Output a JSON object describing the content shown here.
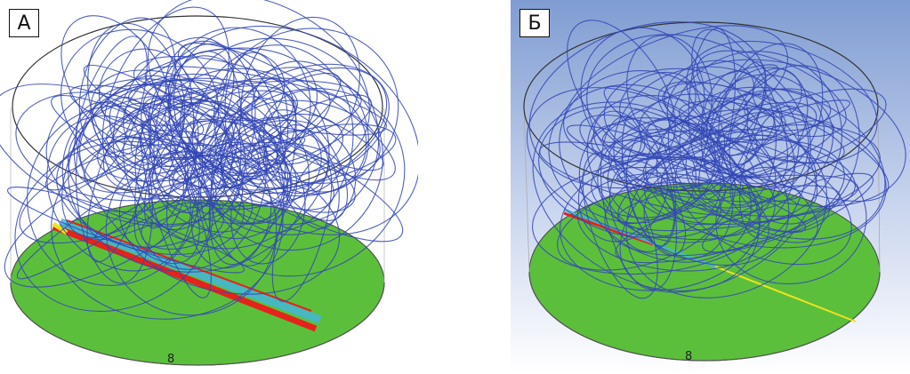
{
  "panels": [
    {
      "id": "a",
      "label": "А",
      "floor_mark": "8"
    },
    {
      "id": "b",
      "label": "Б",
      "floor_mark": "8"
    }
  ],
  "colors": {
    "streamline": "#3347b5",
    "floor": "#5cbf3c",
    "rim": "#333333",
    "hot_jet": "#e5231b",
    "cool_jet": "#44b6d8",
    "warm_jet": "#f2e21d",
    "sky_top": "#7f9cd2",
    "sky_bottom": "#ffffff"
  }
}
